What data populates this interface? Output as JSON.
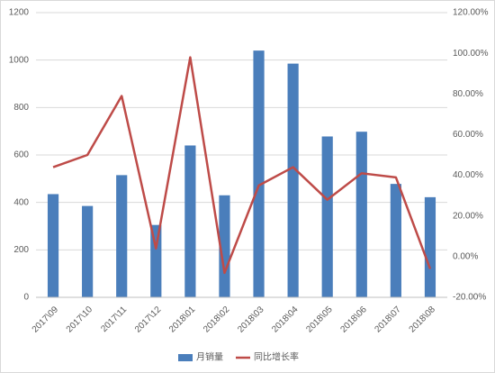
{
  "chart_data": {
    "type": "bar",
    "categories": [
      "2017\\09",
      "2017\\10",
      "2017\\11",
      "2017\\12",
      "2018\\01",
      "2018\\02",
      "2018\\03",
      "2018\\04",
      "2018\\05",
      "2018\\06",
      "2018\\07",
      "2018\\08"
    ],
    "series": [
      {
        "name": "月销量",
        "type": "bar",
        "color": "#4a7ebb",
        "values": [
          435,
          385,
          515,
          305,
          640,
          430,
          1040,
          985,
          678,
          698,
          478,
          422
        ]
      },
      {
        "name": "同比增长率",
        "type": "line",
        "axis": "y2",
        "color": "#be4b48",
        "values": [
          44,
          50,
          79,
          4,
          98,
          -8,
          35,
          44,
          28,
          41,
          39,
          -6
        ]
      }
    ],
    "ylim": [
      0,
      1200
    ],
    "yticks": [
      0,
      200,
      400,
      600,
      800,
      1000,
      1200
    ],
    "y2lim": [
      -20,
      120
    ],
    "y2ticks": [
      {
        "value": -20,
        "label": "-20.00%"
      },
      {
        "value": 0,
        "label": "0.00%"
      },
      {
        "value": 20,
        "label": "20.00%"
      },
      {
        "value": 40,
        "label": "40.00%"
      },
      {
        "value": 60,
        "label": "60.00%"
      },
      {
        "value": 80,
        "label": "80.00%"
      },
      {
        "value": 100,
        "label": "100.00%"
      },
      {
        "value": 120,
        "label": "120.00%"
      }
    ],
    "grid": true,
    "legend": "bottom"
  }
}
